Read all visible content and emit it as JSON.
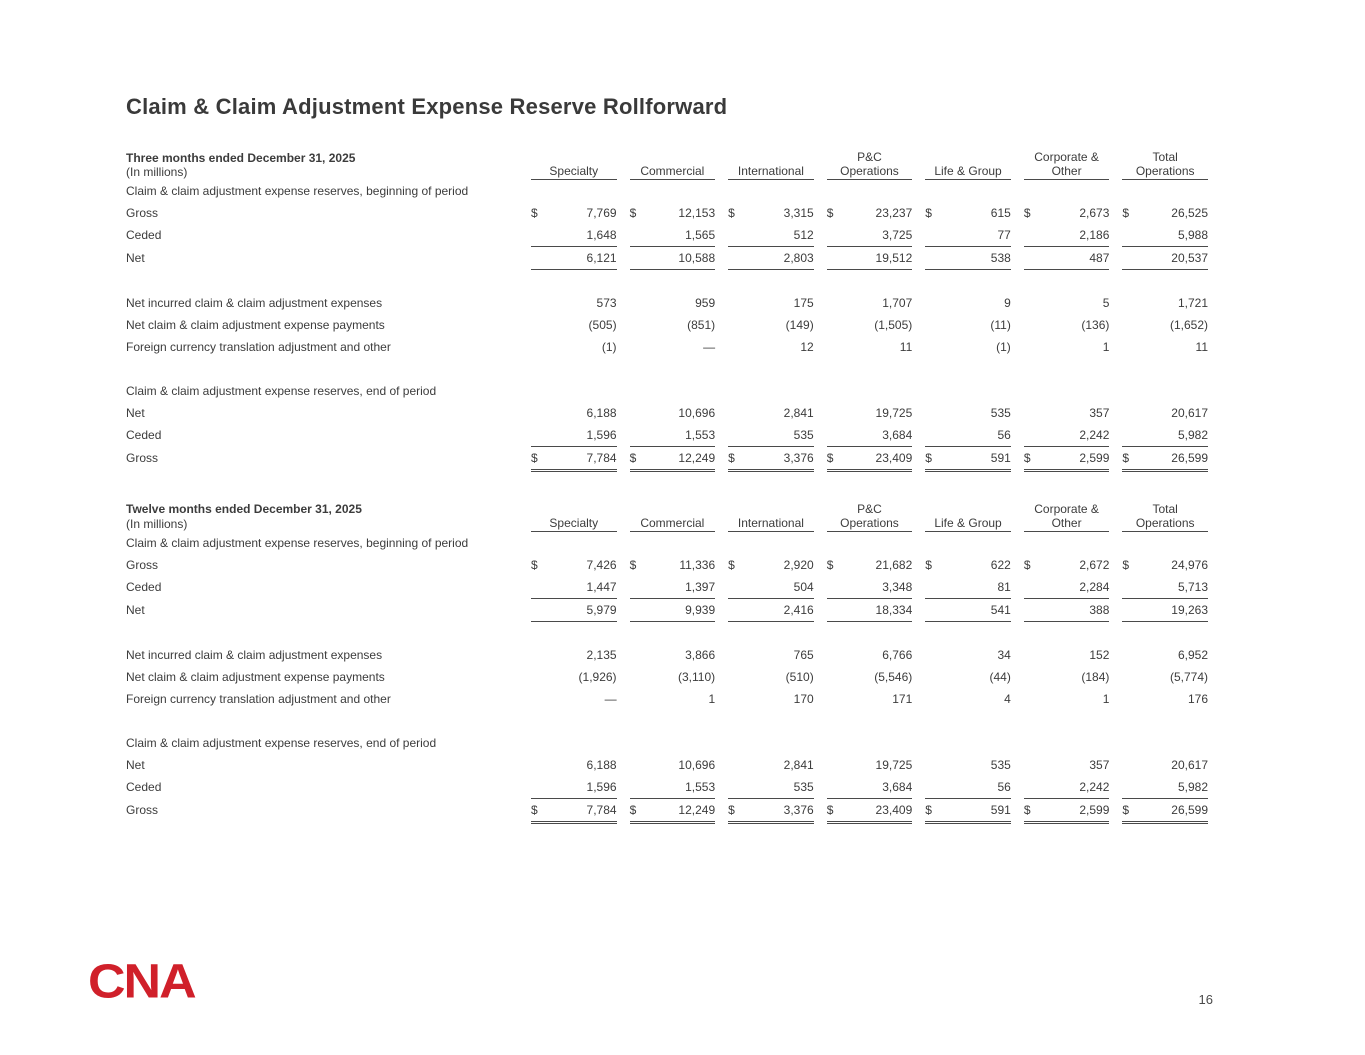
{
  "page": {
    "title": "Claim & Claim Adjustment Expense Reserve Rollforward",
    "page_number": "16",
    "logo_text": "CNA",
    "brand_color": "#d0202a"
  },
  "columns": [
    "Specialty",
    "Commercial",
    "International",
    "P&C\nOperations",
    "Life & Group",
    "Corporate &\nOther",
    "Total\nOperations"
  ],
  "tables": [
    {
      "period_label": "Three months ended December 31, 2025",
      "unit_label": "(In millions)",
      "rows": [
        {
          "type": "section",
          "label": "Claim & claim adjustment expense reserves, beginning of period"
        },
        {
          "type": "data",
          "label": "Gross",
          "indent": true,
          "dollar": true,
          "values": [
            "7,769",
            "12,153",
            "3,315",
            "23,237",
            "615",
            "2,673",
            "26,525"
          ]
        },
        {
          "type": "data",
          "label": "Ceded",
          "indent": true,
          "values": [
            "1,648",
            "1,565",
            "512",
            "3,725",
            "77",
            "2,186",
            "5,988"
          ]
        },
        {
          "type": "data",
          "label": "Net",
          "indent": true,
          "rule_above": true,
          "rule_below": true,
          "values": [
            "6,121",
            "10,588",
            "2,803",
            "19,512",
            "538",
            "487",
            "20,537"
          ]
        },
        {
          "type": "spacer"
        },
        {
          "type": "data",
          "label": "Net incurred claim & claim adjustment expenses",
          "values": [
            "573",
            "959",
            "175",
            "1,707",
            "9",
            "5",
            "1,721"
          ]
        },
        {
          "type": "data",
          "label": "Net claim & claim adjustment expense payments",
          "values": [
            "(505)",
            "(851)",
            "(149)",
            "(1,505)",
            "(11)",
            "(136)",
            "(1,652)"
          ]
        },
        {
          "type": "data",
          "label": "Foreign currency translation adjustment and other",
          "values": [
            "(1)",
            "—",
            "12",
            "11",
            "(1)",
            "1",
            "11"
          ]
        },
        {
          "type": "spacer"
        },
        {
          "type": "section",
          "label": "Claim & claim adjustment expense reserves, end of period"
        },
        {
          "type": "data",
          "label": "Net",
          "indent": true,
          "values": [
            "6,188",
            "10,696",
            "2,841",
            "19,725",
            "535",
            "357",
            "20,617"
          ]
        },
        {
          "type": "data",
          "label": "Ceded",
          "indent": true,
          "values": [
            "1,596",
            "1,553",
            "535",
            "3,684",
            "56",
            "2,242",
            "5,982"
          ]
        },
        {
          "type": "data",
          "label": "Gross",
          "indent": true,
          "dollar": true,
          "rule_above": true,
          "double_below": true,
          "values": [
            "7,784",
            "12,249",
            "3,376",
            "23,409",
            "591",
            "2,599",
            "26,599"
          ]
        }
      ]
    },
    {
      "period_label": "Twelve months ended December 31, 2025",
      "unit_label": "(In millions)",
      "rows": [
        {
          "type": "section",
          "label": "Claim & claim adjustment expense reserves, beginning of period"
        },
        {
          "type": "data",
          "label": "Gross",
          "indent": true,
          "dollar": true,
          "values": [
            "7,426",
            "11,336",
            "2,920",
            "21,682",
            "622",
            "2,672",
            "24,976"
          ]
        },
        {
          "type": "data",
          "label": "Ceded",
          "indent": true,
          "values": [
            "1,447",
            "1,397",
            "504",
            "3,348",
            "81",
            "2,284",
            "5,713"
          ]
        },
        {
          "type": "data",
          "label": "Net",
          "indent": true,
          "rule_above": true,
          "rule_below": true,
          "values": [
            "5,979",
            "9,939",
            "2,416",
            "18,334",
            "541",
            "388",
            "19,263"
          ]
        },
        {
          "type": "spacer"
        },
        {
          "type": "data",
          "label": "Net incurred claim & claim adjustment expenses",
          "values": [
            "2,135",
            "3,866",
            "765",
            "6,766",
            "34",
            "152",
            "6,952"
          ]
        },
        {
          "type": "data",
          "label": "Net claim & claim adjustment expense payments",
          "values": [
            "(1,926)",
            "(3,110)",
            "(510)",
            "(5,546)",
            "(44)",
            "(184)",
            "(5,774)"
          ]
        },
        {
          "type": "data",
          "label": "Foreign currency translation adjustment and other",
          "values": [
            "—",
            "1",
            "170",
            "171",
            "4",
            "1",
            "176"
          ]
        },
        {
          "type": "spacer"
        },
        {
          "type": "section",
          "label": "Claim & claim adjustment expense reserves, end of period"
        },
        {
          "type": "data",
          "label": "Net",
          "indent": true,
          "values": [
            "6,188",
            "10,696",
            "2,841",
            "19,725",
            "535",
            "357",
            "20,617"
          ]
        },
        {
          "type": "data",
          "label": "Ceded",
          "indent": true,
          "values": [
            "1,596",
            "1,553",
            "535",
            "3,684",
            "56",
            "2,242",
            "5,982"
          ]
        },
        {
          "type": "data",
          "label": "Gross",
          "indent": true,
          "dollar": true,
          "rule_above": true,
          "double_below": true,
          "values": [
            "7,784",
            "12,249",
            "3,376",
            "23,409",
            "591",
            "2,599",
            "26,599"
          ]
        }
      ]
    }
  ]
}
